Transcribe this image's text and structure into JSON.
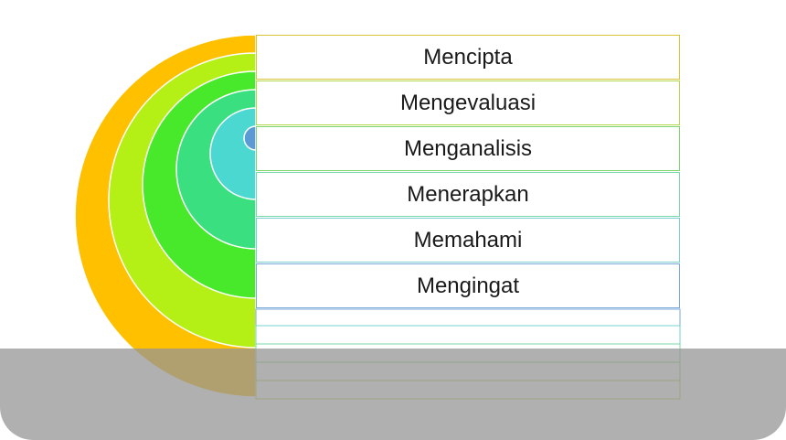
{
  "levels": [
    {
      "label": "Mencipta",
      "color": "#FFC000",
      "border": "#D8C33A"
    },
    {
      "label": "Mengevaluasi",
      "color": "#B4F016",
      "border": "#B4D84A"
    },
    {
      "label": "Menganalisis",
      "color": "#48E82A",
      "border": "#7ED36A"
    },
    {
      "label": "Menerapkan",
      "color": "#3AE080",
      "border": "#7AD8A8"
    },
    {
      "label": "Memahami",
      "color": "#4AD8D0",
      "border": "#7AD0D0"
    },
    {
      "label": "Mengingat",
      "color": "#5B9BD5",
      "border": "#7AA8D8"
    }
  ]
}
